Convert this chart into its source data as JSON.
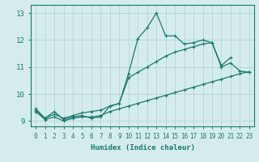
{
  "xlabel": "Humidex (Indice chaleur)",
  "xlim": [
    -0.5,
    23.5
  ],
  "ylim": [
    8.8,
    13.3
  ],
  "background_color": "#d5ecec",
  "grid_color": "#b8d8d8",
  "line_color": "#1a7a6e",
  "xticks": [
    0,
    1,
    2,
    3,
    4,
    5,
    6,
    7,
    8,
    9,
    10,
    11,
    12,
    13,
    14,
    15,
    16,
    17,
    18,
    19,
    20,
    21,
    22,
    23
  ],
  "yticks": [
    9,
    10,
    11,
    12,
    13
  ],
  "series": [
    {
      "x": [
        0,
        1,
        2,
        3,
        4,
        5,
        6,
        7,
        8,
        9,
        10,
        11,
        12,
        13,
        14,
        15,
        16,
        17,
        18,
        19,
        20,
        21,
        22
      ],
      "y": [
        9.45,
        9.1,
        9.35,
        9.05,
        9.15,
        9.2,
        9.1,
        9.15,
        9.55,
        9.65,
        10.75,
        12.05,
        12.45,
        13.0,
        12.15,
        12.15,
        11.85,
        11.9,
        12.0,
        11.9,
        11.05,
        11.35,
        null
      ]
    },
    {
      "x": [
        0,
        1,
        2,
        3,
        4,
        5,
        6,
        7,
        8,
        9,
        10,
        11,
        12,
        13,
        14,
        15,
        16,
        17,
        18,
        19,
        20,
        21,
        22,
        23
      ],
      "y": [
        9.4,
        9.1,
        9.25,
        9.1,
        9.2,
        9.3,
        9.35,
        9.4,
        9.55,
        9.65,
        10.6,
        10.8,
        11.0,
        11.2,
        11.4,
        11.55,
        11.65,
        11.75,
        11.85,
        11.9,
        11.0,
        11.15,
        10.85,
        10.8
      ]
    },
    {
      "x": [
        0,
        1,
        2,
        3,
        4,
        5,
        6,
        7,
        8,
        9,
        10,
        11,
        12,
        13,
        14,
        15,
        16,
        17,
        18,
        19,
        20,
        21,
        22,
        23
      ],
      "y": [
        9.35,
        9.05,
        9.15,
        9.0,
        9.1,
        9.15,
        9.15,
        9.2,
        9.35,
        9.45,
        9.55,
        9.65,
        9.75,
        9.85,
        9.95,
        10.05,
        10.15,
        10.25,
        10.35,
        10.45,
        10.55,
        10.65,
        10.75,
        10.82
      ]
    }
  ]
}
